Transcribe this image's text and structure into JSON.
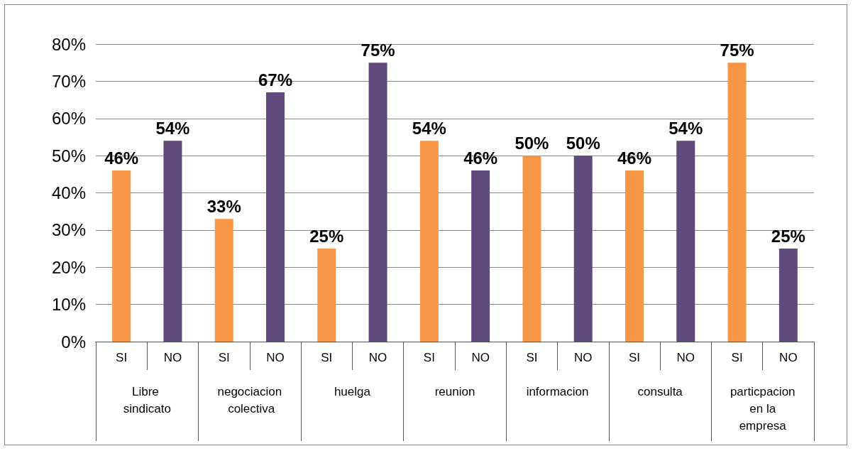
{
  "chart_data": {
    "type": "bar",
    "categories": [
      "SI",
      "NO",
      "SI",
      "NO",
      "SI",
      "NO",
      "SI",
      "NO",
      "SI",
      "NO",
      "SI",
      "NO",
      "SI",
      "NO"
    ],
    "values": [
      46,
      54,
      33,
      67,
      25,
      75,
      54,
      46,
      50,
      50,
      46,
      54,
      75,
      25
    ],
    "colors": [
      "#f79646",
      "#604a7b",
      "#f79646",
      "#604a7b",
      "#f79646",
      "#604a7b",
      "#f79646",
      "#604a7b",
      "#f79646",
      "#604a7b",
      "#f79646",
      "#604a7b",
      "#f79646",
      "#604a7b"
    ],
    "value_labels": [
      "46%",
      "54%",
      "33%",
      "67%",
      "25%",
      "75%",
      "54%",
      "46%",
      "50%",
      "50%",
      "46%",
      "54%",
      "75%",
      "25%"
    ],
    "annotations": [
      "Libre sindicato",
      "negociacion colectiva",
      "huelga",
      "reunion",
      "informacion",
      "consulta",
      "particpacion en la empresa"
    ],
    "ylim": [
      0,
      80
    ],
    "yticks": [
      {
        "value": 0,
        "label": "0%"
      },
      {
        "value": 10,
        "label": "10%"
      },
      {
        "value": 20,
        "label": "20%"
      },
      {
        "value": 30,
        "label": "30%"
      },
      {
        "value": 40,
        "label": "40%"
      },
      {
        "value": 50,
        "label": "50%"
      },
      {
        "value": 60,
        "label": "60%"
      },
      {
        "value": 70,
        "label": "70%"
      },
      {
        "value": 80,
        "label": "80%"
      }
    ],
    "grid": true
  }
}
